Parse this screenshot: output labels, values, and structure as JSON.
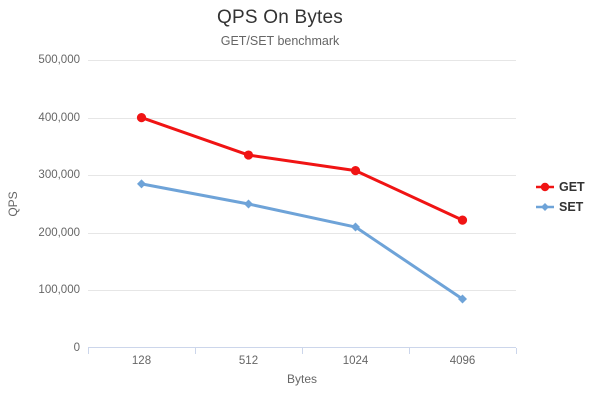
{
  "chart_data": {
    "type": "line",
    "title": "QPS On Bytes",
    "subtitle": "GET/SET benchmark",
    "categories": [
      "128",
      "512",
      "1024",
      "4096"
    ],
    "xlabel": "Bytes",
    "ylabel": "QPS",
    "ylim": [
      0,
      500000
    ],
    "ytick_step": 100000,
    "ytick_labels": [
      "0",
      "100,000",
      "200,000",
      "300,000",
      "400,000",
      "500,000"
    ],
    "grid": true,
    "legend_position": "right",
    "series": [
      {
        "name": "GET",
        "color": "#f01414",
        "marker": "circle",
        "values": [
          400000,
          335000,
          308000,
          222000
        ]
      },
      {
        "name": "SET",
        "color": "#6ea3d8",
        "marker": "diamond",
        "values": [
          285000,
          250000,
          210000,
          85000
        ]
      }
    ],
    "colors": {
      "gridline": "#e6e6e6",
      "axisline": "#ccd6eb",
      "tick_label": "#666666",
      "title": "#333333"
    }
  }
}
